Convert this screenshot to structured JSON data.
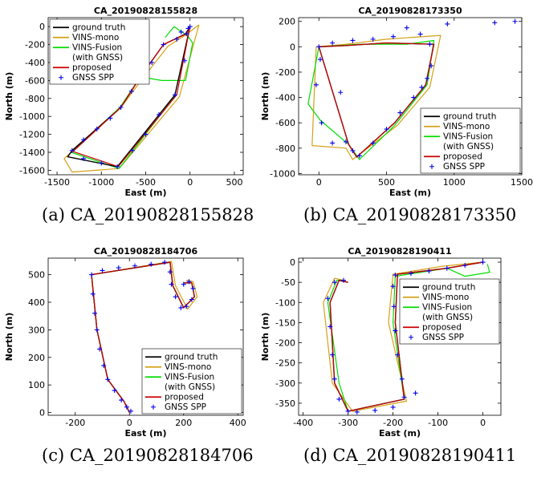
{
  "chart_data": [
    {
      "type": "line",
      "title": "CA_20190828155828",
      "caption": "(a) CA_20190828155828",
      "xlabel": "East (m)",
      "ylabel": "North (m)",
      "xlim": [
        -1600,
        600
      ],
      "ylim": [
        -1650,
        100
      ],
      "xticks": [
        -1500,
        -1000,
        -500,
        0,
        500
      ],
      "yticks": [
        0,
        -200,
        -400,
        -600,
        -800,
        -1000,
        -1200,
        -1400,
        -1600
      ],
      "legend_position": "top-left",
      "series": [
        {
          "name": "ground truth",
          "color": "#000000",
          "x": [
            0,
            -50,
            -300,
            -560,
            -780,
            -1330,
            -1380,
            -820,
            -170,
            0
          ],
          "y": [
            0,
            -80,
            -200,
            -560,
            -900,
            -1380,
            -1450,
            -1560,
            -760,
            0
          ]
        },
        {
          "name": "VINS-mono",
          "color": "#d4a017",
          "x": [
            100,
            -60,
            -250,
            -520,
            -780,
            -1420,
            -1330,
            -800,
            -120,
            100
          ],
          "y": [
            20,
            -100,
            -220,
            -560,
            -900,
            -1470,
            -1620,
            -1580,
            -780,
            20
          ]
        },
        {
          "name": "VINS-Fusion\n(with GNSS)",
          "color": "#00dd00",
          "x": [
            -280,
            -180,
            -120,
            -30,
            30,
            -50,
            -320,
            -560,
            -790,
            -1340,
            -800,
            -160
          ],
          "y": [
            -120,
            0,
            -40,
            -100,
            -180,
            -600,
            -600,
            -560,
            -900,
            -1400,
            -1580,
            -760
          ]
        },
        {
          "name": "proposed",
          "color": "#cc0000",
          "x": [
            0,
            -40,
            -300,
            -560,
            -780,
            -1320,
            -810,
            -150,
            0
          ],
          "y": [
            0,
            -80,
            -200,
            -560,
            -900,
            -1390,
            -1560,
            -760,
            0
          ]
        },
        {
          "name": "GNSS SPP",
          "color": "#0000ee",
          "marker": "+",
          "x": [
            0,
            -40,
            -150,
            -300,
            -430,
            -560,
            -660,
            -780,
            -900,
            -1050,
            -1200,
            -1330,
            -1200,
            -1000,
            -820,
            -650,
            -500,
            -350,
            -170,
            -60,
            -100,
            -20
          ],
          "y": [
            0,
            -80,
            -140,
            -200,
            -400,
            -560,
            -720,
            -900,
            -1020,
            -1140,
            -1260,
            -1380,
            -1470,
            -1520,
            -1560,
            -1380,
            -1200,
            -980,
            -760,
            -380,
            -60,
            -20
          ]
        }
      ]
    },
    {
      "type": "line",
      "title": "CA_20190828173350",
      "caption": "(b) CA_20190828173350",
      "xlabel": "East (m)",
      "ylabel": "North (m)",
      "xlim": [
        -150,
        1500
      ],
      "ylim": [
        -1010,
        230
      ],
      "xticks": [
        0,
        500,
        1000,
        1500
      ],
      "yticks": [
        200,
        0,
        -200,
        -400,
        -600,
        -800,
        -1000
      ],
      "legend_position": "bottom-right",
      "series": [
        {
          "name": "ground truth",
          "color": "#000000",
          "x": [
            0,
            200,
            500,
            850,
            790,
            560,
            280,
            220,
            0
          ],
          "y": [
            0,
            10,
            30,
            20,
            -300,
            -600,
            -870,
            -770,
            0
          ]
        },
        {
          "name": "VINS-mono",
          "color": "#d4a017",
          "x": [
            -20,
            200,
            500,
            900,
            820,
            580,
            250,
            200,
            -50,
            -20
          ],
          "y": [
            0,
            20,
            60,
            90,
            -320,
            -620,
            -890,
            -800,
            -780,
            0
          ]
        },
        {
          "name": "VINS-Fusion\n(with GNSS)",
          "color": "#00dd00",
          "x": [
            0,
            300,
            650,
            850,
            800,
            560,
            300,
            220,
            10,
            -80,
            0
          ],
          "y": [
            0,
            20,
            20,
            50,
            -300,
            -620,
            -890,
            -770,
            -580,
            -450,
            0
          ]
        },
        {
          "name": "proposed",
          "color": "#cc0000",
          "x": [
            0,
            200,
            500,
            850,
            790,
            560,
            280,
            220,
            0
          ],
          "y": [
            0,
            10,
            30,
            20,
            -300,
            -600,
            -870,
            -770,
            0
          ]
        },
        {
          "name": "GNSS SPP",
          "color": "#0000ee",
          "marker": "+",
          "x": [
            0,
            100,
            250,
            400,
            550,
            650,
            750,
            820,
            830,
            800,
            760,
            700,
            600,
            500,
            400,
            300,
            250,
            200,
            100,
            20,
            -20,
            10,
            1300,
            1450,
            950,
            160
          ],
          "y": [
            0,
            30,
            50,
            60,
            80,
            150,
            100,
            20,
            -150,
            -250,
            -320,
            -400,
            -520,
            -650,
            -760,
            -860,
            -820,
            -750,
            -760,
            -600,
            -300,
            -100,
            190,
            200,
            180,
            -360
          ]
        }
      ]
    },
    {
      "type": "line",
      "title": "CA_20190828184706",
      "caption": "(c) CA_20190828184706",
      "xlabel": "East (m)",
      "ylabel": "North (m)",
      "xlim": [
        -300,
        420
      ],
      "ylim": [
        -10,
        560
      ],
      "xticks": [
        -200,
        0,
        200,
        400
      ],
      "yticks": [
        0,
        100,
        200,
        300,
        400,
        500
      ],
      "legend_position": "bottom-right",
      "series": [
        {
          "name": "ground truth",
          "color": "#000000",
          "x": [
            0,
            -20,
            -80,
            -120,
            -140,
            150,
            160,
            200,
            240,
            230,
            200
          ],
          "y": [
            0,
            40,
            120,
            300,
            500,
            545,
            460,
            380,
            420,
            470,
            470
          ]
        },
        {
          "name": "VINS-mono",
          "color": "#d4a017",
          "x": [
            0,
            -20,
            -80,
            -120,
            -140,
            155,
            170,
            215,
            250,
            235,
            210
          ],
          "y": [
            0,
            40,
            120,
            300,
            500,
            548,
            460,
            375,
            420,
            475,
            480
          ]
        },
        {
          "name": "VINS-Fusion\n(with GNSS)",
          "color": "#00dd00",
          "x": [
            0,
            -20,
            -80,
            -120,
            -140,
            150,
            160,
            200,
            240,
            230,
            200
          ],
          "y": [
            0,
            40,
            120,
            300,
            500,
            545,
            460,
            380,
            420,
            470,
            470
          ]
        },
        {
          "name": "proposed",
          "color": "#cc0000",
          "x": [
            0,
            -20,
            -80,
            -120,
            -140,
            150,
            160,
            200,
            240,
            230,
            200
          ],
          "y": [
            0,
            40,
            120,
            300,
            500,
            545,
            460,
            380,
            420,
            470,
            470
          ]
        },
        {
          "name": "GNSS SPP",
          "color": "#0000ee",
          "marker": "+",
          "x": [
            5,
            -10,
            -30,
            -55,
            -80,
            -95,
            -110,
            -120,
            -128,
            -135,
            -140,
            -100,
            -40,
            20,
            80,
            130,
            150,
            155,
            170,
            190,
            210,
            230,
            235,
            220,
            200
          ],
          "y": [
            5,
            20,
            45,
            80,
            120,
            170,
            230,
            300,
            360,
            430,
            500,
            515,
            525,
            532,
            538,
            545,
            510,
            465,
            420,
            380,
            385,
            410,
            450,
            475,
            465
          ]
        }
      ]
    },
    {
      "type": "line",
      "title": "CA_20190828190411",
      "caption": "(d) CA_20190828190411",
      "xlabel": "East (m)",
      "ylabel": "North (m)",
      "xlim": [
        -410,
        40
      ],
      "ylim": [
        -380,
        10
      ],
      "xticks": [
        -400,
        -300,
        -200,
        -100,
        0
      ],
      "yticks": [
        0,
        -50,
        -100,
        -150,
        -200,
        -250,
        -300,
        -350
      ],
      "legend_position": "top-right",
      "series": [
        {
          "name": "ground truth",
          "color": "#000000",
          "x": [
            0,
            -80,
            -190,
            -195,
            -175,
            -300,
            -330,
            -340,
            -320,
            -300
          ],
          "y": [
            0,
            -15,
            -30,
            -150,
            -340,
            -370,
            -300,
            -100,
            -45,
            -50
          ]
        },
        {
          "name": "VINS-mono",
          "color": "#d4a017",
          "x": [
            0,
            -90,
            -200,
            -210,
            -170,
            -290,
            -335,
            -355,
            -330,
            -310
          ],
          "y": [
            0,
            -10,
            -30,
            -150,
            -345,
            -370,
            -300,
            -100,
            -40,
            -45
          ]
        },
        {
          "name": "VINS-Fusion\n(with GNSS)",
          "color": "#00dd00",
          "x": [
            10,
            15,
            -40,
            -80,
            -195,
            -200,
            -175,
            -300,
            -320,
            -345,
            -325,
            -300
          ],
          "y": [
            -5,
            -25,
            -35,
            -15,
            -35,
            -150,
            -340,
            -370,
            -300,
            -100,
            -45,
            -50
          ]
        },
        {
          "name": "proposed",
          "color": "#cc0000",
          "x": [
            0,
            -80,
            -190,
            -195,
            -175,
            -300,
            -330,
            -340,
            -320,
            -300
          ],
          "y": [
            0,
            -15,
            -30,
            -150,
            -340,
            -370,
            -300,
            -100,
            -45,
            -50
          ]
        },
        {
          "name": "GNSS SPP",
          "color": "#0000ee",
          "marker": "+",
          "x": [
            0,
            -40,
            -80,
            -120,
            -160,
            -195,
            -200,
            -198,
            -195,
            -190,
            -180,
            -175,
            -200,
            -240,
            -280,
            -300,
            -320,
            -330,
            -335,
            -340,
            -345,
            -330,
            -310,
            -150
          ],
          "y": [
            0,
            -8,
            -15,
            -22,
            -28,
            -32,
            -60,
            -110,
            -170,
            -230,
            -290,
            -335,
            -360,
            -368,
            -372,
            -370,
            -340,
            -290,
            -230,
            -160,
            -90,
            -50,
            -45,
            -325
          ]
        }
      ]
    }
  ]
}
